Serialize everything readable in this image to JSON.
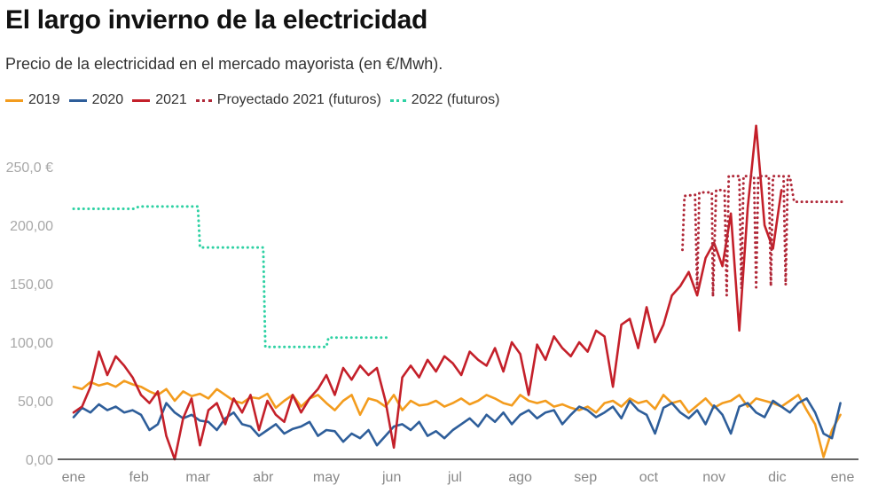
{
  "chart_data": {
    "type": "line",
    "title": "El largo invierno de la electricidad",
    "subtitle": "Precio de la electricidad en el mercado mayorista (en €/Mwh).",
    "xlabel": "",
    "ylabel": "",
    "ylim": [
      0,
      250
    ],
    "y_ticks": [
      {
        "value": 0,
        "label": "0,00"
      },
      {
        "value": 50,
        "label": "50,00"
      },
      {
        "value": 100,
        "label": "100,00"
      },
      {
        "value": 150,
        "label": "150,00"
      },
      {
        "value": 200,
        "label": "200,00"
      },
      {
        "value": 250,
        "label": "250,0 €"
      }
    ],
    "x_unit": "day of year",
    "xlim": [
      0,
      365
    ],
    "x_ticks": [
      {
        "day": 0,
        "label": "ene"
      },
      {
        "day": 31,
        "label": "feb"
      },
      {
        "day": 59,
        "label": "mar"
      },
      {
        "day": 90,
        "label": "abr"
      },
      {
        "day": 120,
        "label": "may"
      },
      {
        "day": 151,
        "label": "jun"
      },
      {
        "day": 181,
        "label": "jul"
      },
      {
        "day": 212,
        "label": "ago"
      },
      {
        "day": 243,
        "label": "sep"
      },
      {
        "day": 273,
        "label": "oct"
      },
      {
        "day": 304,
        "label": "nov"
      },
      {
        "day": 334,
        "label": "dic"
      },
      {
        "day": 365,
        "label": "ene"
      }
    ],
    "grid": false,
    "legend_position": "top-left",
    "series": [
      {
        "name": "2019",
        "style": "solid",
        "color": "#F39C1E",
        "x_step_days": 4,
        "x_start_day": 0,
        "values": [
          62,
          60,
          66,
          63,
          65,
          62,
          67,
          64,
          62,
          58,
          55,
          60,
          50,
          58,
          54,
          56,
          52,
          60,
          55,
          50,
          48,
          53,
          52,
          56,
          44,
          50,
          55,
          45,
          52,
          55,
          48,
          42,
          50,
          55,
          38,
          52,
          50,
          45,
          55,
          42,
          50,
          46,
          47,
          50,
          45,
          48,
          52,
          47,
          50,
          55,
          52,
          48,
          46,
          55,
          50,
          48,
          50,
          45,
          47,
          44,
          42,
          45,
          40,
          48,
          50,
          45,
          52,
          48,
          50,
          43,
          55,
          48,
          50,
          40,
          46,
          52,
          44,
          48,
          50,
          55,
          45,
          52,
          50,
          48,
          45,
          50,
          55,
          42,
          30,
          2,
          25,
          38
        ]
      },
      {
        "name": "2020",
        "style": "solid",
        "color": "#2E5E9A",
        "x_step_days": 4,
        "x_start_day": 0,
        "values": [
          36,
          44,
          40,
          47,
          42,
          45,
          40,
          42,
          38,
          25,
          30,
          48,
          40,
          35,
          38,
          33,
          32,
          25,
          35,
          40,
          30,
          28,
          20,
          25,
          30,
          22,
          26,
          28,
          32,
          20,
          25,
          24,
          15,
          22,
          18,
          25,
          12,
          20,
          28,
          30,
          25,
          32,
          20,
          24,
          18,
          25,
          30,
          35,
          28,
          38,
          32,
          40,
          30,
          38,
          42,
          35,
          40,
          42,
          30,
          38,
          45,
          42,
          36,
          40,
          45,
          35,
          50,
          42,
          38,
          22,
          44,
          48,
          40,
          35,
          42,
          30,
          46,
          38,
          22,
          45,
          48,
          40,
          36,
          50,
          45,
          40,
          48,
          52,
          40,
          22,
          18,
          48
        ]
      },
      {
        "name": "2021",
        "style": "solid",
        "color": "#C4202A",
        "x_step_days": 4,
        "x_start_day": 0,
        "values": [
          40,
          45,
          62,
          92,
          72,
          88,
          80,
          70,
          55,
          48,
          58,
          20,
          0,
          35,
          52,
          12,
          42,
          48,
          30,
          52,
          40,
          55,
          25,
          50,
          38,
          32,
          55,
          40,
          52,
          60,
          72,
          55,
          78,
          68,
          80,
          72,
          78,
          50,
          10,
          70,
          80,
          70,
          85,
          75,
          88,
          82,
          72,
          92,
          85,
          80,
          95,
          75,
          100,
          90,
          55,
          98,
          85,
          105,
          95,
          88,
          100,
          92,
          110,
          105,
          62,
          115,
          120,
          95,
          130,
          100,
          115,
          140,
          148,
          160,
          140,
          172,
          185,
          165,
          210,
          110,
          215,
          285,
          200,
          180,
          230
        ],
        "end_day": 336
      },
      {
        "name": "Proyectado 2021 (futuros)",
        "style": "dotted",
        "color": "#B02838",
        "points": [
          {
            "day": 289,
            "value": 179
          },
          {
            "day": 290,
            "value": 225
          },
          {
            "day": 295,
            "value": 226
          },
          {
            "day": 296,
            "value": 146
          },
          {
            "day": 297,
            "value": 228
          },
          {
            "day": 303,
            "value": 228
          },
          {
            "day": 303.5,
            "value": 139
          },
          {
            "day": 305,
            "value": 230
          },
          {
            "day": 309,
            "value": 230
          },
          {
            "day": 310,
            "value": 140
          },
          {
            "day": 311,
            "value": 242
          },
          {
            "day": 316,
            "value": 242
          },
          {
            "day": 317,
            "value": 146
          },
          {
            "day": 318,
            "value": 242
          },
          {
            "day": 323,
            "value": 242
          },
          {
            "day": 324,
            "value": 147
          },
          {
            "day": 325,
            "value": 242
          },
          {
            "day": 330,
            "value": 242
          },
          {
            "day": 331,
            "value": 148
          },
          {
            "day": 332,
            "value": 242
          },
          {
            "day": 337,
            "value": 242
          },
          {
            "day": 338,
            "value": 149
          },
          {
            "day": 339,
            "value": 242
          },
          {
            "day": 340,
            "value": 242
          },
          {
            "day": 342,
            "value": 220
          },
          {
            "day": 365,
            "value": 220
          }
        ]
      },
      {
        "name": "2022 (futuros)",
        "style": "dotted",
        "color": "#2ED1A3",
        "points": [
          {
            "day": 0,
            "value": 214
          },
          {
            "day": 29,
            "value": 214
          },
          {
            "day": 31,
            "value": 216
          },
          {
            "day": 59,
            "value": 216
          },
          {
            "day": 60,
            "value": 181
          },
          {
            "day": 90,
            "value": 181
          },
          {
            "day": 91,
            "value": 96
          },
          {
            "day": 120,
            "value": 96
          },
          {
            "day": 121,
            "value": 104
          },
          {
            "day": 150,
            "value": 104
          }
        ]
      }
    ]
  }
}
